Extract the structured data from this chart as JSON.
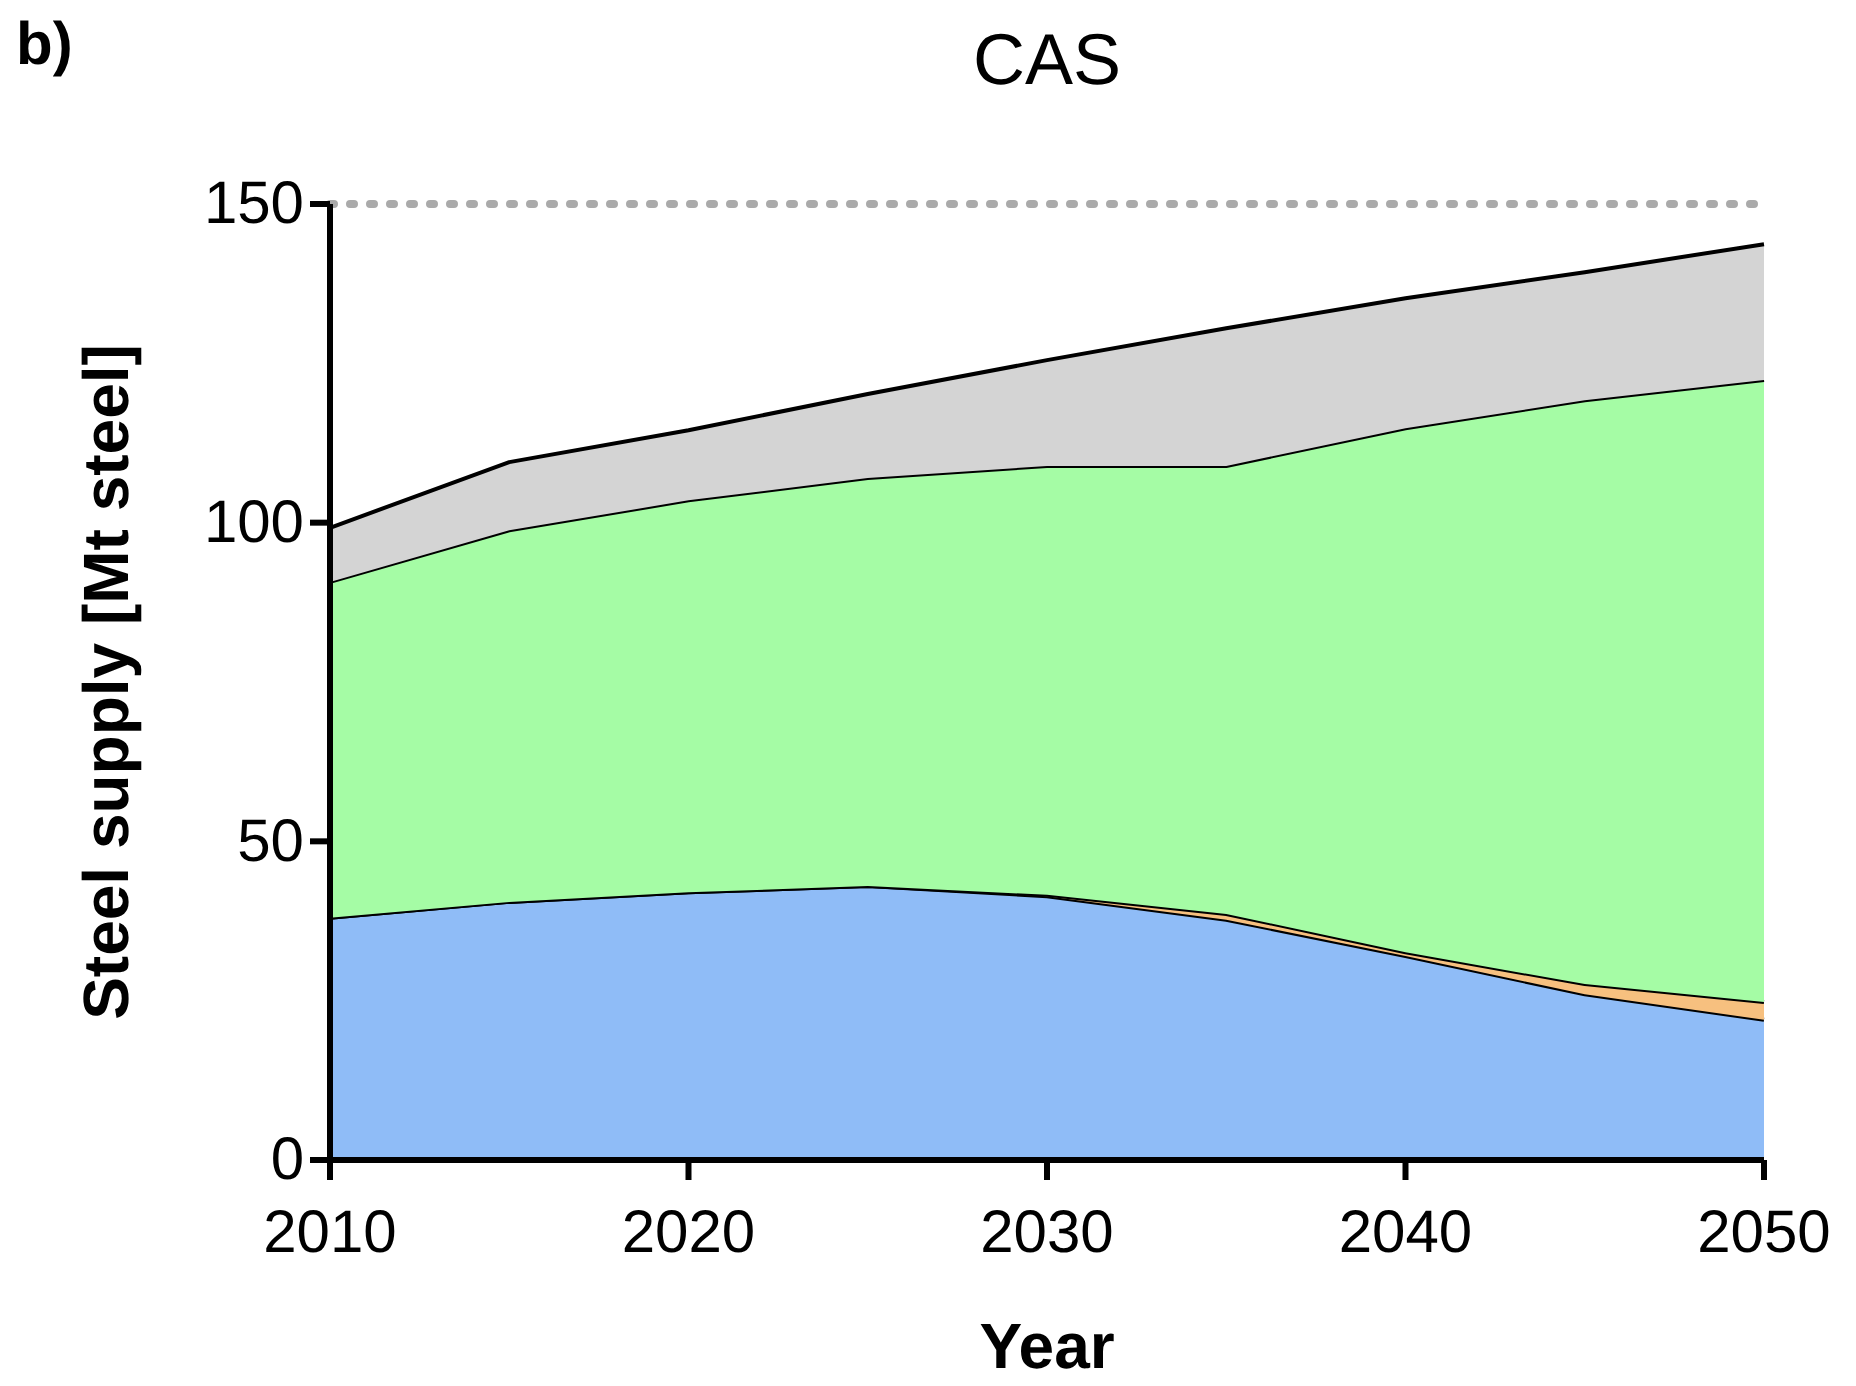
{
  "chart_data": {
    "type": "area",
    "title": "CAS",
    "xlabel": "Year",
    "ylabel": "Steel supply [Mt steel]",
    "annotations": [
      "b)"
    ],
    "stacked": true,
    "x": [
      2010,
      2015,
      2020,
      2025,
      2030,
      2035,
      2040,
      2045,
      2050
    ],
    "series": [
      {
        "color": "#8fbcf7",
        "values": [
          38,
          40.5,
          42,
          43,
          41.4,
          37.7,
          32,
          26,
          22
        ]
      },
      {
        "color": "#f7c07f",
        "values": [
          0,
          0,
          0,
          0,
          0.2,
          0.9,
          0.6,
          1.6,
          2.8
        ]
      },
      {
        "color": "#a5fca5",
        "values": [
          52.7,
          58.3,
          61.5,
          64,
          67.3,
          70.3,
          82.2,
          91.6,
          97.6
        ]
      },
      {
        "color": "#d4d4d4",
        "values": [
          8.5,
          10.7,
          11,
          13.2,
          16.6,
          21.6,
          20.4,
          20.1,
          21.3
        ]
      }
    ],
    "xlim": [
      2010,
      2050
    ],
    "xticks": [
      2010,
      2020,
      2030,
      2040,
      2050
    ],
    "ylim": [
      0,
      150
    ],
    "yticks": [
      0,
      50,
      100,
      150
    ],
    "ref_lines": [
      {
        "axis": "y",
        "value": 150,
        "label": null,
        "color": "#aaaaaa",
        "line_style": "dotted"
      }
    ],
    "grid": false
  }
}
